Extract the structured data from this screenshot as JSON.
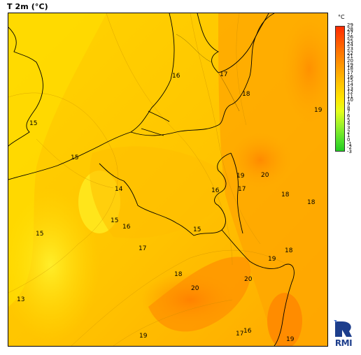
{
  "title": "T 2m (°C)",
  "legend": {
    "unit": "°C",
    "ticks": [
      "29",
      "28",
      "27",
      "26",
      "25",
      "24",
      "23",
      "22",
      "21",
      "20",
      "19",
      "18",
      "17",
      "16",
      "15",
      "14",
      "13",
      "12",
      "11",
      "10",
      "9",
      "8",
      "7",
      "6",
      "5",
      "4",
      "3",
      "2",
      "1",
      "0",
      "-1",
      "-2",
      "-3"
    ],
    "colors": {
      "top": "#ff2a00",
      "mid": "#ffe500",
      "bottom": "#22cc22"
    }
  },
  "map_labels": [
    {
      "text": "16"
    },
    {
      "text": "17"
    },
    {
      "text": "18"
    },
    {
      "text": "19"
    },
    {
      "text": "15"
    },
    {
      "text": "15"
    },
    {
      "text": "14"
    },
    {
      "text": "20"
    },
    {
      "text": "19"
    },
    {
      "text": "17"
    },
    {
      "text": "16"
    },
    {
      "text": "18"
    },
    {
      "text": "18"
    },
    {
      "text": "15"
    },
    {
      "text": "16"
    },
    {
      "text": "15"
    },
    {
      "text": "15"
    },
    {
      "text": "17"
    },
    {
      "text": "18"
    },
    {
      "text": "19"
    },
    {
      "text": "20"
    },
    {
      "text": "18"
    },
    {
      "text": "20"
    },
    {
      "text": "13"
    },
    {
      "text": "17"
    },
    {
      "text": "16"
    },
    {
      "text": "19"
    },
    {
      "text": "19"
    }
  ],
  "logo": {
    "text": "RMI",
    "icon": "rmi-logo-icon"
  }
}
